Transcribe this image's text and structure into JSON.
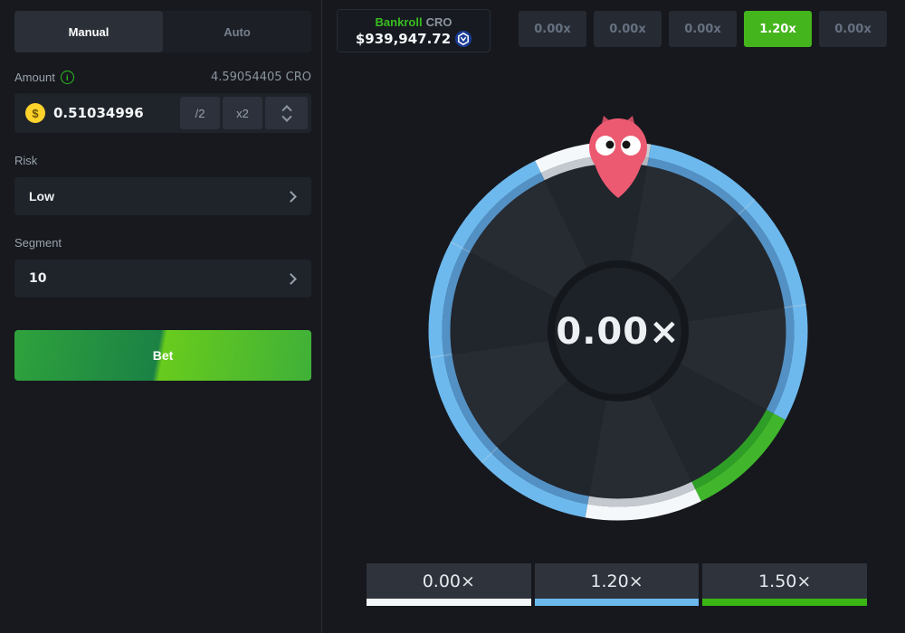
{
  "left_panel": {
    "tabs": [
      {
        "label": "Manual",
        "active": true
      },
      {
        "label": "Auto",
        "active": false
      }
    ],
    "amount": {
      "label": "Amount",
      "balance": "4.59054405 CRO",
      "value": "0.51034996",
      "half_label": "/2",
      "double_label": "x2",
      "coin_symbol": "$"
    },
    "risk": {
      "label": "Risk",
      "value": "Low"
    },
    "segment": {
      "label": "Segment",
      "value": "10"
    },
    "bet_label": "Bet"
  },
  "header": {
    "bankroll": {
      "label": "Bankroll",
      "currency": "CRO",
      "value": "$939,947.72",
      "coin_icon": "cronos-icon"
    },
    "history": [
      {
        "label": "0.00x",
        "win": false
      },
      {
        "label": "0.00x",
        "win": false
      },
      {
        "label": "0.00x",
        "win": false
      },
      {
        "label": "1.20x",
        "win": true
      },
      {
        "label": "0.00x",
        "win": false
      }
    ]
  },
  "wheel": {
    "result": "0.00×",
    "segments": [
      {
        "from": 334,
        "to": 360,
        "color": "white",
        "payout": "0.00x"
      },
      {
        "from": 0,
        "to": 10,
        "color": "gray",
        "payout": "0.00x"
      },
      {
        "from": 10,
        "to": 46,
        "color": "blue",
        "payout": "1.20x"
      },
      {
        "from": 46,
        "to": 82,
        "color": "blue",
        "payout": "1.20x"
      },
      {
        "from": 82,
        "to": 118,
        "color": "blue",
        "payout": "1.20x"
      },
      {
        "from": 118,
        "to": 154,
        "color": "green",
        "payout": "1.50x"
      },
      {
        "from": 154,
        "to": 190,
        "color": "white",
        "payout": "0.00x"
      },
      {
        "from": 190,
        "to": 226,
        "color": "blue",
        "payout": "1.20x"
      },
      {
        "from": 226,
        "to": 262,
        "color": "blue",
        "payout": "1.20x"
      },
      {
        "from": 262,
        "to": 298,
        "color": "blue",
        "payout": "1.20x"
      },
      {
        "from": 298,
        "to": 334,
        "color": "blue",
        "payout": "1.20x"
      }
    ],
    "ticks": [
      46,
      82,
      226,
      262,
      298
    ],
    "palette": {
      "blue": {
        "outer": "#6db9ee",
        "inner": "#5391c4"
      },
      "white": {
        "outer": "#f5f8fa",
        "inner": "#c3c9cf"
      },
      "gray": {
        "outer": "#c9ced3",
        "inner": "#b2b8be"
      },
      "green": {
        "outer": "#41b62c",
        "inner": "#2f9e26"
      }
    },
    "slice_colors": [
      "#21252c",
      "#272b32"
    ],
    "center_fill": "#1d2128",
    "center_ring": "#14171b",
    "owl_body": "#ec5a72",
    "owl_ears": "#c84a61"
  },
  "legend": [
    {
      "label": "0.00×",
      "color": "#f4f7f9"
    },
    {
      "label": "1.20×",
      "color": "#6cb9ee"
    },
    {
      "label": "1.50×",
      "color": "#3bb513"
    }
  ]
}
